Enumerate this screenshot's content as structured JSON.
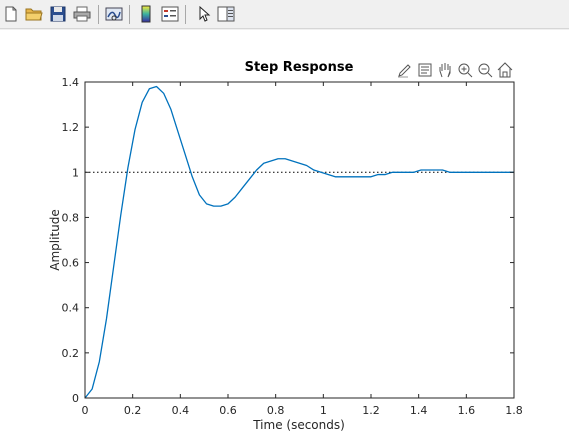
{
  "toolbar": {
    "buttons": [
      {
        "name": "new-figure",
        "icon": "new-document-icon"
      },
      {
        "name": "open-file",
        "icon": "folder-icon"
      },
      {
        "name": "save-figure",
        "icon": "floppy-disk-icon"
      },
      {
        "name": "print-figure",
        "icon": "printer-icon"
      },
      {
        "name": "link-plot",
        "icon": "link-plot-icon"
      },
      {
        "name": "insert-colorbar",
        "icon": "colorbar-icon"
      },
      {
        "name": "insert-legend",
        "icon": "legend-icon"
      },
      {
        "name": "edit-plot",
        "icon": "arrow-pointer-icon"
      },
      {
        "name": "property-inspector",
        "icon": "property-panel-icon"
      }
    ]
  },
  "axes_toolbar": [
    "brush-icon",
    "data-tip-icon",
    "pan-hand-icon",
    "zoom-in-icon",
    "zoom-out-icon",
    "home-icon"
  ],
  "colors": {
    "line": "#0072bd",
    "reference": "#000000",
    "axis": "#262626"
  },
  "chart_data": {
    "type": "line",
    "title": "Step Response",
    "xlabel": "Time (seconds)",
    "ylabel": "Amplitude",
    "xlim": [
      0,
      1.8
    ],
    "ylim": [
      0,
      1.4
    ],
    "xticks": [
      "0",
      "0.2",
      "0.4",
      "0.6",
      "0.8",
      "1",
      "1.2",
      "1.4",
      "1.6",
      "1.8"
    ],
    "yticks": [
      "0",
      "0.2",
      "0.4",
      "0.6",
      "0.8",
      "1",
      "1.2",
      "1.4"
    ],
    "grid": false,
    "reference_line": 1,
    "series": [
      {
        "x": [
          0,
          0.03,
          0.06,
          0.09,
          0.12,
          0.15,
          0.18,
          0.21,
          0.24,
          0.27,
          0.3,
          0.33,
          0.36,
          0.39,
          0.42,
          0.45,
          0.48,
          0.51,
          0.54,
          0.57,
          0.6,
          0.63,
          0.66,
          0.69,
          0.72,
          0.75,
          0.78,
          0.81,
          0.84,
          0.87,
          0.9,
          0.93,
          0.96,
          0.99,
          1.02,
          1.05,
          1.08,
          1.11,
          1.14,
          1.17,
          1.2,
          1.23,
          1.26,
          1.29,
          1.32,
          1.35,
          1.38,
          1.41,
          1.44,
          1.47,
          1.5,
          1.53,
          1.56,
          1.59,
          1.62,
          1.65,
          1.68,
          1.71,
          1.74,
          1.77,
          1.8
        ],
        "y": [
          0,
          0.04,
          0.16,
          0.35,
          0.58,
          0.81,
          1.02,
          1.19,
          1.31,
          1.37,
          1.38,
          1.35,
          1.28,
          1.18,
          1.08,
          0.98,
          0.9,
          0.86,
          0.85,
          0.85,
          0.86,
          0.89,
          0.93,
          0.97,
          1.01,
          1.04,
          1.05,
          1.06,
          1.06,
          1.05,
          1.04,
          1.03,
          1.01,
          1.0,
          0.99,
          0.98,
          0.98,
          0.98,
          0.98,
          0.98,
          0.98,
          0.99,
          0.99,
          1.0,
          1.0,
          1.0,
          1.0,
          1.01,
          1.01,
          1.01,
          1.01,
          1.0,
          1.0,
          1.0,
          1.0,
          1.0,
          1.0,
          1.0,
          1.0,
          1.0,
          1.0
        ]
      }
    ]
  }
}
